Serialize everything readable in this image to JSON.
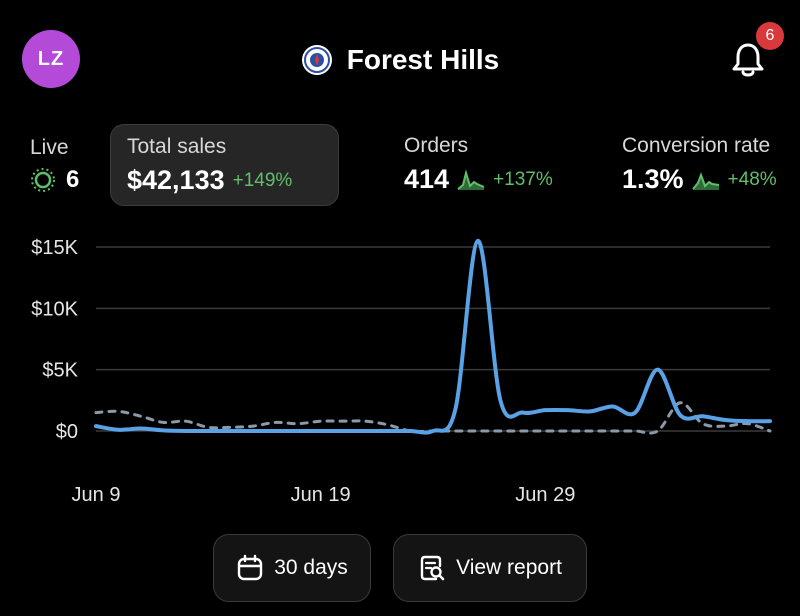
{
  "header": {
    "avatar_initials": "LZ",
    "store_name": "Forest Hills",
    "notification_count": "6"
  },
  "metrics": {
    "live": {
      "label": "Live",
      "value": "6"
    },
    "total_sales": {
      "label": "Total sales",
      "value": "$42,133",
      "delta": "+149%"
    },
    "orders": {
      "label": "Orders",
      "value": "414",
      "delta": "+137%"
    },
    "conversion": {
      "label": "Conversion rate",
      "value": "1.3%",
      "delta": "+48%"
    }
  },
  "chart_data": {
    "type": "line",
    "y_ticks": [
      "$15K",
      "$10K",
      "$5K",
      "$0"
    ],
    "x_ticks": [
      "Jun 9",
      "Jun 19",
      "Jun 29"
    ],
    "ylim": [
      0,
      15000
    ],
    "x": [
      "Jun 9",
      "Jun 10",
      "Jun 11",
      "Jun 12",
      "Jun 13",
      "Jun 14",
      "Jun 15",
      "Jun 16",
      "Jun 17",
      "Jun 18",
      "Jun 19",
      "Jun 20",
      "Jun 21",
      "Jun 22",
      "Jun 23",
      "Jun 24",
      "Jun 25",
      "Jun 26",
      "Jun 27",
      "Jun 28",
      "Jun 29",
      "Jun 30",
      "Jul 1",
      "Jul 2",
      "Jul 3",
      "Jul 4",
      "Jul 5",
      "Jul 6",
      "Jul 7",
      "Jul 8",
      "Jul 9"
    ],
    "series": [
      {
        "values": [
          400,
          100,
          200,
          50,
          0,
          0,
          0,
          0,
          0,
          0,
          0,
          0,
          0,
          0,
          0,
          0,
          1800,
          15500,
          2500,
          1500,
          1700,
          1700,
          1600,
          2000,
          1500,
          5000,
          1300,
          1200,
          900,
          800,
          800
        ],
        "style": "solid",
        "color": "#5aa2e6"
      },
      {
        "values": [
          1500,
          1600,
          1200,
          700,
          800,
          300,
          300,
          400,
          700,
          600,
          800,
          800,
          800,
          500,
          0,
          0,
          0,
          0,
          0,
          0,
          0,
          0,
          0,
          0,
          0,
          0,
          2300,
          600,
          400,
          600,
          0
        ],
        "style": "dashed",
        "color": "#8a9aa8"
      }
    ],
    "grid": true
  },
  "footer": {
    "days_label": "30 days",
    "report_label": "View report"
  }
}
